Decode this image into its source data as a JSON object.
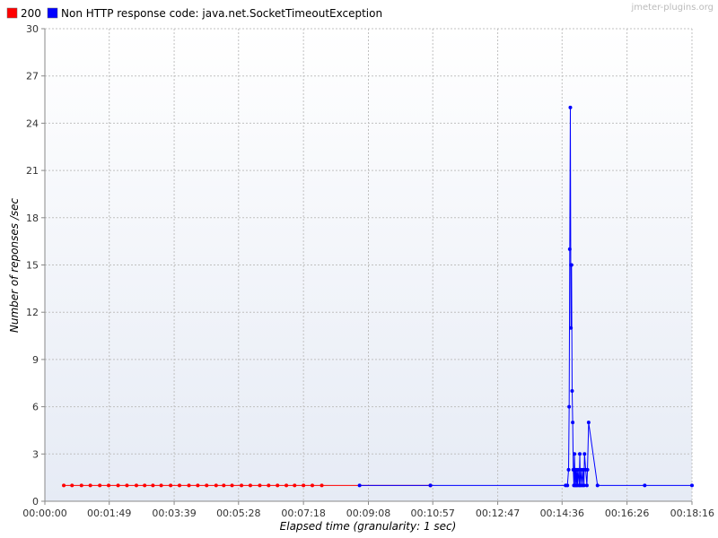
{
  "watermark": "jmeter-plugins.org",
  "chart_data": {
    "type": "line",
    "xlabel": "Elapsed time (granularity: 1 sec)",
    "ylabel": "Number of reponses /sec",
    "xlim": [
      "00:00:00",
      "00:18:16"
    ],
    "ylim": [
      0,
      30
    ],
    "grid": true,
    "legend_position": "top-left",
    "x_ticks": [
      "00:00:00",
      "00:01:49",
      "00:03:39",
      "00:05:28",
      "00:07:18",
      "00:09:08",
      "00:10:57",
      "00:12:47",
      "00:14:36",
      "00:16:26",
      "00:18:16"
    ],
    "y_ticks": [
      0,
      3,
      6,
      9,
      12,
      15,
      18,
      21,
      24,
      27,
      30
    ],
    "series": [
      {
        "name": "200",
        "color": "#ff0000",
        "points": [
          [
            "00:00:32",
            1
          ],
          [
            "00:00:46",
            1
          ],
          [
            "00:01:02",
            1
          ],
          [
            "00:01:17",
            1
          ],
          [
            "00:01:33",
            1
          ],
          [
            "00:01:48",
            1
          ],
          [
            "00:02:04",
            1
          ],
          [
            "00:02:19",
            1
          ],
          [
            "00:02:35",
            1
          ],
          [
            "00:02:49",
            1
          ],
          [
            "00:03:03",
            1
          ],
          [
            "00:03:17",
            1
          ],
          [
            "00:03:33",
            1
          ],
          [
            "00:03:48",
            1
          ],
          [
            "00:04:04",
            1
          ],
          [
            "00:04:19",
            1
          ],
          [
            "00:04:34",
            1
          ],
          [
            "00:04:50",
            1
          ],
          [
            "00:05:03",
            1
          ],
          [
            "00:05:17",
            1
          ],
          [
            "00:05:33",
            1
          ],
          [
            "00:05:48",
            1
          ],
          [
            "00:06:04",
            1
          ],
          [
            "00:06:19",
            1
          ],
          [
            "00:06:34",
            1
          ],
          [
            "00:06:49",
            1
          ],
          [
            "00:07:03",
            1
          ],
          [
            "00:07:18",
            1
          ],
          [
            "00:07:33",
            1
          ],
          [
            "00:07:49",
            1
          ],
          [
            "00:10:53",
            1
          ]
        ]
      },
      {
        "name": "Non HTTP response code: java.net.SocketTimeoutException",
        "color": "#0000ff",
        "points": [
          [
            "00:08:53",
            1
          ],
          [
            "00:10:53",
            1
          ],
          [
            "00:14:42",
            1
          ],
          [
            "00:14:45",
            1
          ],
          [
            "00:14:47",
            2
          ],
          [
            "00:14:48",
            6
          ],
          [
            "00:14:49",
            16
          ],
          [
            "00:14:50",
            25
          ],
          [
            "00:14:51",
            11
          ],
          [
            "00:14:51",
            15
          ],
          [
            "00:14:52",
            15
          ],
          [
            "00:14:53",
            7
          ],
          [
            "00:14:54",
            5
          ],
          [
            "00:14:55",
            2
          ],
          [
            "00:14:56",
            1
          ],
          [
            "00:14:57",
            3
          ],
          [
            "00:14:58",
            1
          ],
          [
            "00:14:59",
            2
          ],
          [
            "00:15:00",
            1
          ],
          [
            "00:15:01",
            2
          ],
          [
            "00:15:02",
            1
          ],
          [
            "00:15:03",
            2
          ],
          [
            "00:15:05",
            1
          ],
          [
            "00:15:06",
            3
          ],
          [
            "00:15:07",
            1
          ],
          [
            "00:15:09",
            2
          ],
          [
            "00:15:10",
            1
          ],
          [
            "00:15:12",
            2
          ],
          [
            "00:15:13",
            1
          ],
          [
            "00:15:14",
            3
          ],
          [
            "00:15:16",
            2
          ],
          [
            "00:15:18",
            1
          ],
          [
            "00:15:19",
            2
          ],
          [
            "00:15:21",
            5
          ],
          [
            "00:15:36",
            1
          ],
          [
            "00:16:56",
            1
          ],
          [
            "00:18:16",
            1
          ]
        ]
      }
    ]
  }
}
